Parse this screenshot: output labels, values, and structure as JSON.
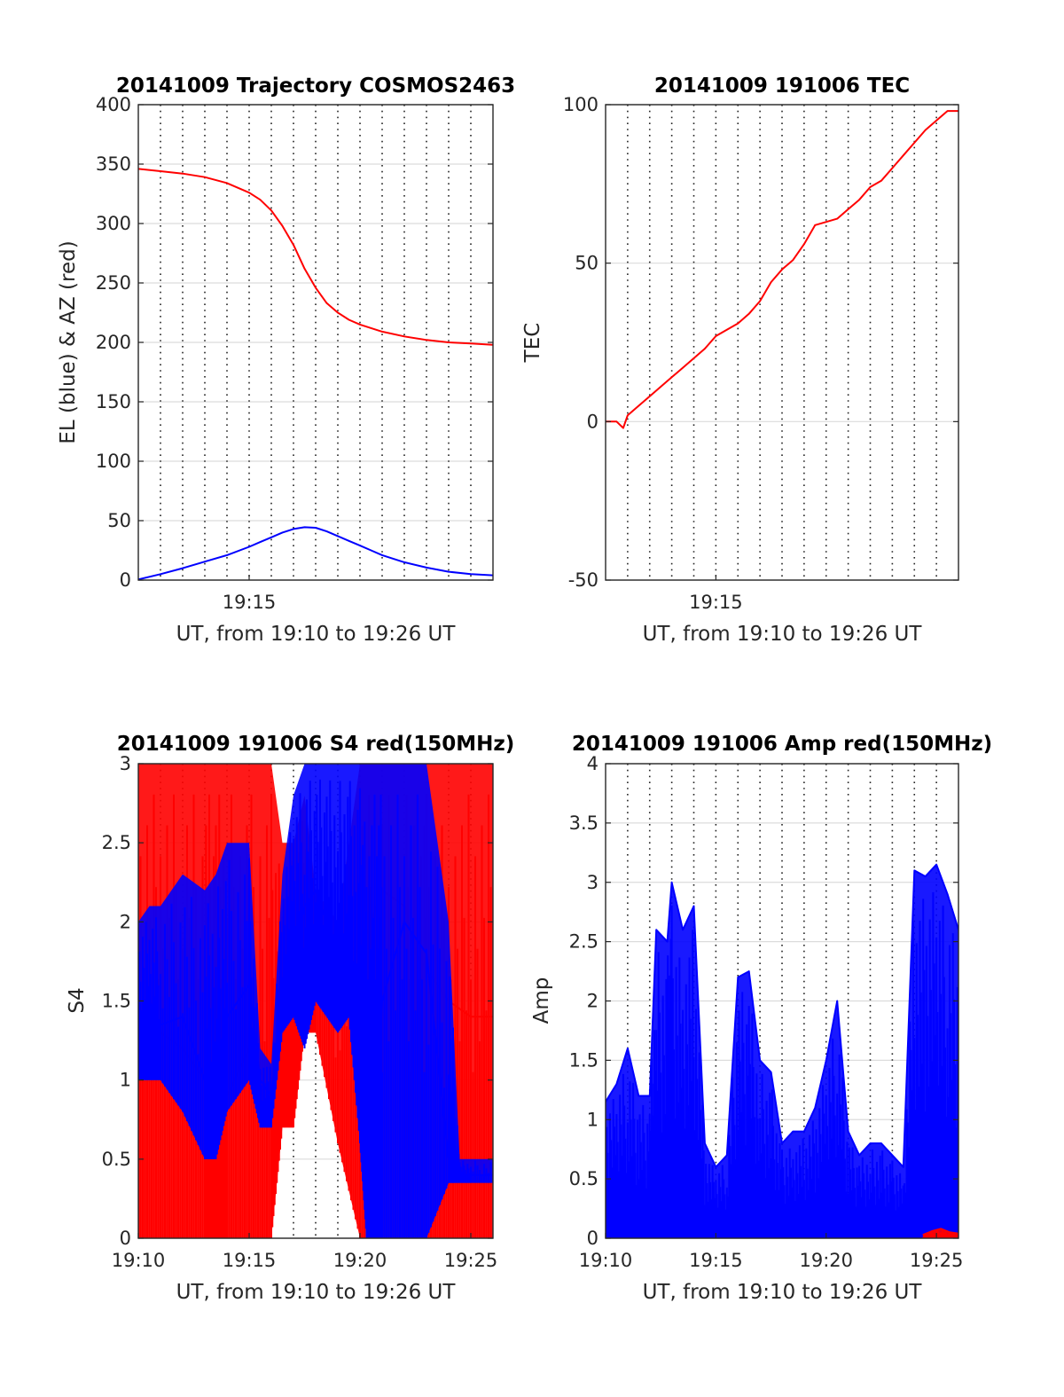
{
  "chart_data": [
    {
      "id": "trajectory",
      "type": "line",
      "title": "20141009 Trajectory COSMOS2463",
      "xlabel": "UT, from 19:10 to 19:26 UT",
      "ylabel": "EL (blue) & AZ (red)",
      "xlim": [
        10.0,
        26.0
      ],
      "ylim": [
        0,
        400
      ],
      "xticks": [
        {
          "value": 15,
          "label": "19:15"
        }
      ],
      "yticks": [
        0,
        50,
        100,
        150,
        200,
        250,
        300,
        350,
        400
      ],
      "grid": true,
      "series": [
        {
          "color": "#ff0000",
          "x": [
            10.0,
            11.0,
            12.0,
            13.0,
            14.0,
            15.0,
            15.5,
            16.0,
            16.5,
            17.0,
            17.5,
            18.0,
            18.5,
            19.0,
            19.5,
            20.0,
            20.5,
            21.0,
            22.0,
            23.0,
            24.0,
            25.0,
            26.0
          ],
          "y": [
            346,
            344,
            342,
            339,
            334,
            326,
            320,
            311,
            298,
            282,
            262,
            246,
            233,
            225,
            219,
            215,
            212,
            209,
            205,
            202,
            200,
            199,
            198
          ]
        },
        {
          "color": "#0000ff",
          "x": [
            10.0,
            11.0,
            12.0,
            13.0,
            14.0,
            15.0,
            15.5,
            16.0,
            16.5,
            17.0,
            17.5,
            18.0,
            18.5,
            19.0,
            19.5,
            20.0,
            20.5,
            21.0,
            22.0,
            23.0,
            24.0,
            25.0,
            26.0
          ],
          "y": [
            0.5,
            5,
            10,
            15.5,
            21,
            28,
            32,
            36,
            40,
            43,
            44.5,
            44,
            41,
            37,
            33,
            29,
            25,
            21,
            15,
            10.5,
            7,
            5,
            4
          ]
        }
      ]
    },
    {
      "id": "tec",
      "type": "line",
      "title": "20141009 191006 TEC",
      "xlabel": "UT, from 19:10 to 19:26 UT",
      "ylabel": "TEC",
      "xlim": [
        10.0,
        26.0
      ],
      "ylim": [
        -50,
        100
      ],
      "xticks": [
        {
          "value": 15,
          "label": "19:15"
        }
      ],
      "yticks": [
        -50,
        0,
        50,
        100
      ],
      "grid": true,
      "series": [
        {
          "color": "#ff0000",
          "x": [
            10.0,
            10.5,
            10.8,
            11.0,
            11.5,
            12.0,
            12.5,
            13.0,
            13.5,
            14.0,
            14.5,
            15.0,
            15.5,
            16.0,
            16.5,
            17.0,
            17.5,
            18.0,
            18.5,
            19.0,
            19.5,
            20.0,
            20.5,
            21.0,
            21.5,
            22.0,
            22.5,
            23.0,
            23.5,
            24.0,
            24.5,
            25.0,
            25.5,
            26.0
          ],
          "y": [
            0,
            0,
            -2,
            2,
            5,
            8,
            11,
            14,
            17,
            20,
            23,
            27,
            29,
            31,
            34,
            38,
            44,
            48,
            51,
            56,
            62,
            63,
            64,
            67,
            70,
            74,
            76,
            80,
            84,
            88,
            92,
            95,
            98,
            98
          ]
        }
      ]
    },
    {
      "id": "s4",
      "type": "line",
      "title": "20141009 191006 S4 red(150MHz)",
      "xlabel": "UT, from 19:10 to 19:26 UT",
      "ylabel": "S4",
      "xlim": [
        10.0,
        26.0
      ],
      "ylim": [
        0,
        3
      ],
      "xticks": [
        {
          "value": 10,
          "label": "19:10"
        },
        {
          "value": 15,
          "label": "19:15"
        },
        {
          "value": 20,
          "label": "19:20"
        },
        {
          "value": 25,
          "label": "19:25"
        }
      ],
      "yticks": [
        0,
        0.5,
        1,
        1.5,
        2,
        2.5,
        3
      ],
      "grid": true,
      "series": [
        {
          "color": "#ff0000",
          "x": [
            10.0,
            11.0,
            12.0,
            13.0,
            13.5,
            14.0,
            15.0,
            16.0,
            16.5,
            17.0,
            17.5,
            18.0,
            19.0,
            20.0,
            21.0,
            22.0,
            22.5,
            23.0,
            24.0,
            25.0,
            26.0
          ],
          "y": [
            1.4,
            1.3,
            1.2,
            1.0,
            0.6,
            0.9,
            1.2,
            0.9,
            0.8,
            1.6,
            1.8,
            2.0,
            1.9,
            1.8,
            2.2,
            2.1,
            1.8,
            1.7,
            1.5,
            1.4,
            1.4
          ],
          "min": [
            0,
            0,
            0,
            0,
            0,
            0,
            0,
            0,
            0.7,
            0.7,
            1.3,
            1.3,
            0.6,
            0,
            0,
            0,
            0,
            0,
            0,
            0,
            0
          ],
          "max": [
            3,
            3,
            3,
            3,
            3,
            3,
            3,
            3,
            2.5,
            2.5,
            2.8,
            2.2,
            2.0,
            3,
            3,
            3,
            3,
            3,
            3,
            3,
            3
          ]
        },
        {
          "color": "#0000ff",
          "x": [
            10.0,
            10.5,
            11.0,
            12.0,
            13.0,
            13.5,
            14.0,
            15.0,
            15.5,
            16.0,
            16.5,
            17.0,
            17.5,
            18.0,
            18.5,
            19.0,
            19.5,
            20.0,
            20.3,
            20.7,
            21.0,
            22.0,
            23.0,
            24.0,
            24.5,
            25.0,
            26.0
          ],
          "y": [
            1.4,
            1.5,
            1.35,
            1.4,
            1.0,
            0.9,
            1.4,
            1.6,
            1.0,
            0.9,
            1.6,
            1.8,
            2.1,
            2.2,
            2.0,
            1.8,
            1.9,
            0.8,
            1.5,
            0.7,
            1.5,
            2.0,
            1.8,
            0.5,
            0.4,
            0.4,
            0.4
          ],
          "min": [
            1.0,
            1.0,
            1.0,
            0.8,
            0.5,
            0.5,
            0.8,
            1.0,
            0.7,
            0.7,
            1.3,
            1.4,
            1.2,
            1.5,
            1.4,
            1.3,
            1.4,
            0.6,
            0,
            0,
            0,
            0,
            0,
            0.35,
            0.35,
            0.35,
            0.35
          ],
          "max": [
            2.0,
            2.1,
            2.1,
            2.3,
            2.2,
            2.3,
            2.5,
            2.5,
            1.2,
            1.1,
            2.3,
            2.8,
            3,
            3,
            3,
            3,
            3,
            3,
            3,
            3,
            3,
            3,
            3,
            2.0,
            0.5,
            0.5,
            0.5
          ]
        }
      ]
    },
    {
      "id": "amp",
      "type": "line",
      "title": "20141009 191006 Amp red(150MHz)",
      "xlabel": "UT, from 19:10 to 19:26 UT",
      "ylabel": "Amp",
      "xlim": [
        10.0,
        26.0
      ],
      "ylim": [
        0,
        4
      ],
      "xticks": [
        {
          "value": 10,
          "label": "19:10"
        },
        {
          "value": 15,
          "label": "19:15"
        },
        {
          "value": 20,
          "label": "19:20"
        },
        {
          "value": 25,
          "label": "19:25"
        }
      ],
      "yticks": [
        0,
        0.5,
        1,
        1.5,
        2,
        2.5,
        3,
        3.5,
        4
      ],
      "grid": true,
      "series": [
        {
          "color": "#0000ff",
          "x": [
            10.0,
            10.5,
            11.0,
            11.5,
            12.0,
            12.3,
            12.8,
            13.0,
            13.5,
            14.0,
            14.5,
            15.0,
            15.5,
            16.0,
            16.5,
            17.0,
            17.5,
            18.0,
            18.5,
            19.0,
            19.5,
            20.0,
            20.5,
            21.0,
            21.5,
            22.0,
            22.5,
            23.0,
            23.5,
            24.0,
            24.5,
            25.0,
            25.5,
            26.0
          ],
          "y": [
            1.15,
            1.3,
            1.6,
            1.2,
            1.2,
            2.6,
            2.5,
            3.0,
            2.6,
            2.8,
            0.8,
            0.6,
            0.7,
            2.2,
            2.25,
            1.5,
            1.4,
            0.8,
            0.9,
            0.9,
            1.1,
            1.5,
            2.0,
            0.9,
            0.7,
            0.8,
            0.8,
            0.7,
            0.6,
            3.1,
            3.05,
            3.15,
            2.9,
            2.6
          ],
          "min": [
            0,
            0,
            0,
            0,
            0,
            0,
            0,
            0,
            0,
            0,
            0,
            0,
            0,
            0,
            0,
            0,
            0,
            0,
            0,
            0,
            0,
            0,
            0,
            0,
            0,
            0,
            0,
            0,
            0,
            0,
            0,
            0,
            0,
            0
          ]
        },
        {
          "color": "#ff0000",
          "x": [
            24.4,
            24.8,
            25.2,
            25.6,
            26.0
          ],
          "y": [
            0.03,
            0.06,
            0.08,
            0.05,
            0.04
          ],
          "min": [
            0,
            0,
            0,
            0,
            0
          ]
        }
      ]
    }
  ]
}
